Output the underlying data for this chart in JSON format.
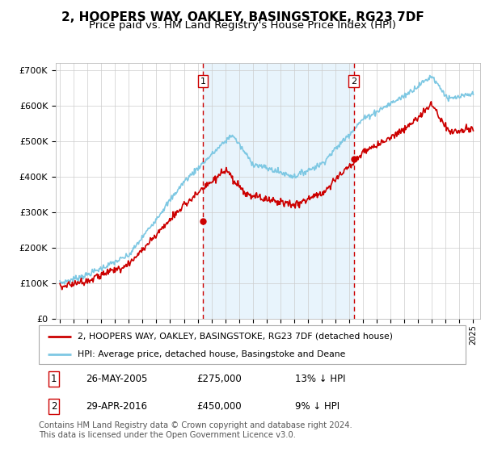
{
  "title": "2, HOOPERS WAY, OAKLEY, BASINGSTOKE, RG23 7DF",
  "subtitle": "Price paid vs. HM Land Registry's House Price Index (HPI)",
  "ylim": [
    0,
    720000
  ],
  "yticks": [
    0,
    100000,
    200000,
    300000,
    400000,
    500000,
    600000,
    700000
  ],
  "ytick_labels": [
    "£0",
    "£100K",
    "£200K",
    "£300K",
    "£400K",
    "£500K",
    "£600K",
    "£700K"
  ],
  "sale1_date": 2005.38,
  "sale1_price": 275000,
  "sale2_date": 2016.33,
  "sale2_price": 450000,
  "hpi_color": "#7ec8e3",
  "price_color": "#cc0000",
  "bg_highlight_color": "#e8f4fc",
  "dashed_line_color": "#cc0000",
  "legend_label_price": "2, HOOPERS WAY, OAKLEY, BASINGSTOKE, RG23 7DF (detached house)",
  "legend_label_hpi": "HPI: Average price, detached house, Basingstoke and Deane",
  "table_rows": [
    [
      "1",
      "26-MAY-2005",
      "£275,000",
      "13% ↓ HPI"
    ],
    [
      "2",
      "29-APR-2016",
      "£450,000",
      "9% ↓ HPI"
    ]
  ],
  "footnote": "Contains HM Land Registry data © Crown copyright and database right 2024.\nThis data is licensed under the Open Government Licence v3.0.",
  "title_fontsize": 11,
  "subtitle_fontsize": 9.5,
  "tick_fontsize": 8
}
